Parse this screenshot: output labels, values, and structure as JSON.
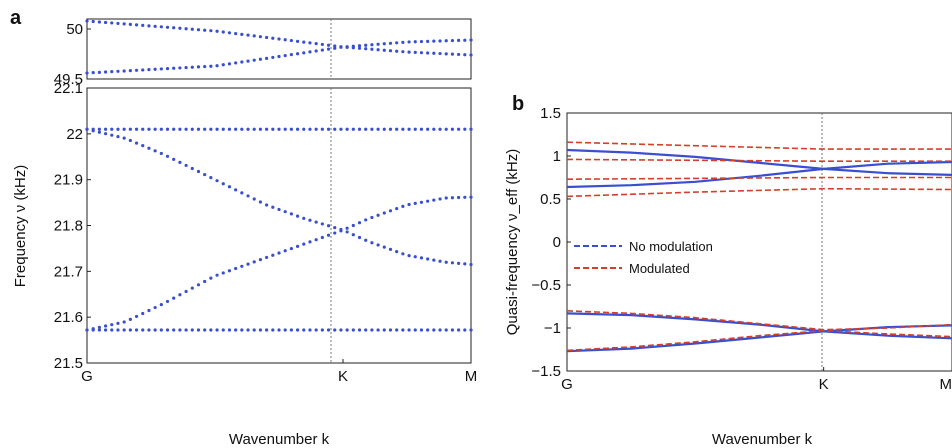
{
  "panel_a_label": "a",
  "panel_b_label": "b",
  "chart_data": [
    {
      "type": "scatter",
      "panel": "a",
      "xlabel": "Wavenumber k",
      "ylabel": "Frequency ν (kHz)",
      "x_ticks": [
        "G",
        "K",
        "M"
      ],
      "x_tick_positions": [
        0,
        1,
        1.5
      ],
      "vline_at": "K",
      "top_axis": {
        "ylim": [
          49.5,
          50.1
        ],
        "yticks": [
          "50",
          "49.5"
        ],
        "ytick_values": [
          50,
          49.5
        ]
      },
      "bottom_axis": {
        "ylim": [
          21.5,
          22.1
        ],
        "yticks": [
          "22.1",
          "22",
          "21.9",
          "21.8",
          "21.7",
          "21.6",
          "21.5"
        ],
        "ytick_values": [
          22.1,
          22.0,
          21.9,
          21.8,
          21.7,
          21.6,
          21.5
        ]
      },
      "color": "#3a4fd0",
      "series": [
        {
          "axis": "top",
          "points": [
            [
              0,
              50.08
            ],
            [
              0.5,
              49.98
            ],
            [
              1,
              49.82
            ],
            [
              1.25,
              49.87
            ],
            [
              1.5,
              49.89
            ]
          ]
        },
        {
          "axis": "top",
          "points": [
            [
              0,
              49.56
            ],
            [
              0.5,
              49.63
            ],
            [
              1,
              49.82
            ],
            [
              1.25,
              49.77
            ],
            [
              1.5,
              49.74
            ]
          ]
        },
        {
          "axis": "bottom",
          "points": [
            [
              0,
              22.01
            ],
            [
              1,
              22.01
            ],
            [
              1.5,
              22.01
            ]
          ]
        },
        {
          "axis": "bottom",
          "points": [
            [
              0,
              22.01
            ],
            [
              0.15,
              21.99
            ],
            [
              0.3,
              21.955
            ],
            [
              0.5,
              21.9
            ],
            [
              0.7,
              21.845
            ],
            [
              0.85,
              21.815
            ],
            [
              1,
              21.79
            ],
            [
              1.1,
              21.765
            ],
            [
              1.25,
              21.735
            ],
            [
              1.4,
              21.72
            ],
            [
              1.5,
              21.715
            ]
          ]
        },
        {
          "axis": "bottom",
          "points": [
            [
              0,
              21.572
            ],
            [
              0.15,
              21.59
            ],
            [
              0.3,
              21.63
            ],
            [
              0.5,
              21.69
            ],
            [
              0.7,
              21.73
            ],
            [
              0.85,
              21.76
            ],
            [
              1,
              21.79
            ],
            [
              1.1,
              21.815
            ],
            [
              1.25,
              21.845
            ],
            [
              1.4,
              21.86
            ],
            [
              1.5,
              21.862
            ]
          ]
        },
        {
          "axis": "bottom",
          "points": [
            [
              0,
              21.572
            ],
            [
              1,
              21.572
            ],
            [
              1.5,
              21.572
            ]
          ]
        }
      ]
    },
    {
      "type": "line",
      "panel": "b",
      "xlabel": "Wavenumber k",
      "ylabel": "Quasi-frequency ν_eff (kHz)",
      "x_ticks": [
        "G",
        "K",
        "M"
      ],
      "x_tick_positions": [
        0,
        1,
        1.5
      ],
      "vline_at": "K",
      "ylim": [
        -1.5,
        1.5
      ],
      "yticks": [
        "1.5",
        "1",
        "0.5",
        "0",
        "−0.5",
        "−1",
        "−1.5"
      ],
      "ytick_values": [
        1.5,
        1,
        0.5,
        0,
        -0.5,
        -1,
        -1.5
      ],
      "legend": [
        {
          "name": "No modulation",
          "color": "#3a4fd0",
          "style": "dashed"
        },
        {
          "name": "Modulated",
          "color": "#d2402a",
          "style": "dashed"
        }
      ],
      "legend_position": "center-left",
      "series": [
        {
          "group": "No modulation",
          "color": "#3a4fd0",
          "x": [
            0,
            0.25,
            0.5,
            0.75,
            1,
            1.25,
            1.5
          ],
          "y": [
            1.07,
            1.04,
            0.99,
            0.92,
            0.85,
            0.8,
            0.78
          ]
        },
        {
          "group": "No modulation",
          "color": "#3a4fd0",
          "x": [
            0,
            0.25,
            0.5,
            0.75,
            1,
            1.25,
            1.5
          ],
          "y": [
            0.64,
            0.66,
            0.7,
            0.77,
            0.85,
            0.91,
            0.93
          ]
        },
        {
          "group": "No modulation",
          "color": "#3a4fd0",
          "x": [
            0,
            0.25,
            0.5,
            0.75,
            1,
            1.25,
            1.5
          ],
          "y": [
            -0.83,
            -0.85,
            -0.9,
            -0.96,
            -1.04,
            -1.09,
            -1.12
          ]
        },
        {
          "group": "No modulation",
          "color": "#3a4fd0",
          "x": [
            0,
            0.25,
            0.5,
            0.75,
            1,
            1.25,
            1.5
          ],
          "y": [
            -1.27,
            -1.24,
            -1.18,
            -1.11,
            -1.04,
            -0.99,
            -0.97
          ]
        },
        {
          "group": "Modulated",
          "color": "#d2402a",
          "x": [
            0,
            0.5,
            1,
            1.5
          ],
          "y": [
            1.16,
            1.12,
            1.08,
            1.08
          ]
        },
        {
          "group": "Modulated",
          "color": "#d2402a",
          "x": [
            0,
            0.5,
            1,
            1.5
          ],
          "y": [
            0.96,
            0.95,
            0.94,
            0.94
          ]
        },
        {
          "group": "Modulated",
          "color": "#d2402a",
          "x": [
            0,
            0.5,
            1,
            1.5
          ],
          "y": [
            0.73,
            0.74,
            0.75,
            0.75
          ]
        },
        {
          "group": "Modulated",
          "color": "#d2402a",
          "x": [
            0,
            0.5,
            1,
            1.5
          ],
          "y": [
            0.53,
            0.58,
            0.62,
            0.61
          ]
        },
        {
          "group": "Modulated",
          "color": "#d2402a",
          "x": [
            0,
            0.25,
            0.5,
            0.75,
            1,
            1.25,
            1.5
          ],
          "y": [
            -0.8,
            -0.83,
            -0.88,
            -0.95,
            -1.02,
            -1.0,
            -0.96
          ]
        },
        {
          "group": "Modulated",
          "color": "#d2402a",
          "x": [
            0,
            0.25,
            0.5,
            0.75,
            1,
            1.25,
            1.5
          ],
          "y": [
            -1.26,
            -1.22,
            -1.16,
            -1.09,
            -1.03,
            -1.07,
            -1.1
          ]
        }
      ]
    }
  ]
}
